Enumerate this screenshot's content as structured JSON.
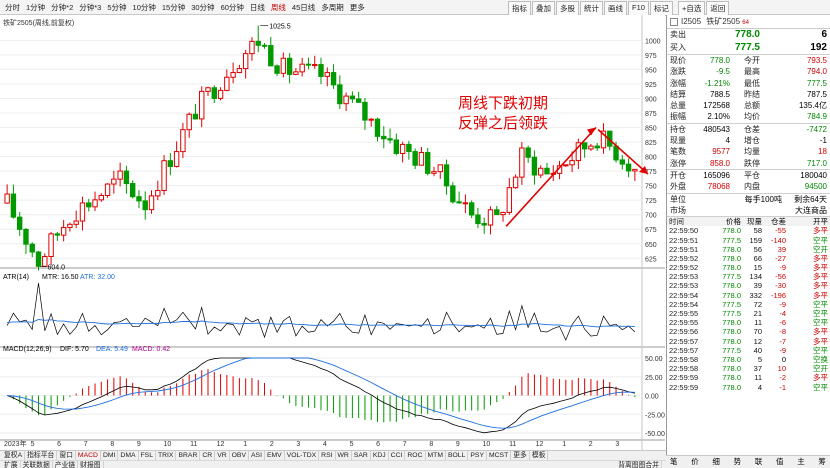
{
  "toolbar": {
    "periods": [
      "分时",
      "1分钟",
      "分钟*2",
      "分钟*3",
      "5分钟",
      "10分钟",
      "15分钟",
      "30分钟",
      "60分钟",
      "日线",
      "周线",
      "45日线",
      "多周期",
      "更多"
    ],
    "active_period": 10,
    "tools": [
      "指标",
      "叠加",
      "多股",
      "統计",
      "画线",
      "F10",
      "标记"
    ],
    "tools_right": [
      "+自选",
      "返回"
    ]
  },
  "chart": {
    "title": "铁矿2505(周线,前复权)",
    "high_label": "1025.5",
    "low_label": "604.0",
    "annotation_line1": "周线下跌初期",
    "annotation_line2": "反弹之后领跌",
    "price_axis": [
      "1000",
      "975",
      "950",
      "925",
      "900",
      "875",
      "850",
      "825",
      "800",
      "775",
      "750",
      "725",
      "700",
      "675",
      "650",
      "625"
    ],
    "atr_legend": {
      "name": "ATR(14)",
      "mtr": "MTR: 16.50",
      "atr": "ATR: 32.00"
    },
    "macd_legend": {
      "name": "MACD(12,26,9)",
      "dif": "DIF: 5.70",
      "dea": "DEA: 5.49",
      "macd": "MACD: 0.42"
    },
    "macd_axis": [
      "50.00",
      "25.00",
      "0.00",
      "-25.00",
      "-50.00"
    ],
    "x_labels": [
      "2023年",
      "5",
      "6",
      "7",
      "8",
      "9",
      "10",
      "11",
      "12",
      "1",
      "2",
      "3",
      "4",
      "5",
      "6",
      "7",
      "8",
      "9",
      "10",
      "11",
      "12",
      "1",
      "2",
      "3"
    ],
    "colors": {
      "up": "#e00000",
      "down": "#009a00",
      "dif": "#000000",
      "dea": "#1e6fe0",
      "atr": "#1e6fe0",
      "annotation": "#e00000"
    }
  },
  "chart_data": {
    "type": "candlestick",
    "series": [
      {
        "name": "ATR",
        "values": []
      },
      {
        "name": "MACD",
        "values": []
      }
    ],
    "price_high": 1025.5,
    "price_low": 604.0,
    "ylim": [
      610,
      1035
    ]
  },
  "panel": {
    "code": "I2505",
    "name": "铁矿2505",
    "badge": "64",
    "sell": {
      "label": "卖出",
      "price": "778.0",
      "vol": "6"
    },
    "buy": {
      "label": "买入",
      "price": "777.5",
      "vol": "192"
    },
    "quote": [
      [
        "现价",
        "778.0",
        "今开",
        "793.5"
      ],
      [
        "涨跌",
        "-9.5",
        "最高",
        "794.0"
      ],
      [
        "涨幅",
        "-1.21%",
        "最低",
        "777.5"
      ],
      [
        "结算",
        "788.5",
        "昨结",
        "787.5"
      ],
      [
        "总量",
        "172568",
        "总额",
        "135.4亿"
      ],
      [
        "振幅",
        "2.10%",
        "均价",
        "784.9"
      ]
    ],
    "pos": [
      [
        "持仓",
        "480543",
        "仓差",
        "-7472"
      ],
      [
        "现量",
        "4",
        "增仓",
        "-1"
      ],
      [
        "笔数",
        "9577",
        "均量",
        "18"
      ],
      [
        "涨停",
        "858.0",
        "跌停",
        "717.0"
      ]
    ],
    "io": [
      [
        "开仓",
        "165096",
        "平仓",
        "180040"
      ],
      [
        "外盘",
        "78068",
        "内盘",
        "94500"
      ]
    ],
    "unit": [
      "单位",
      "每手100吨",
      "剩余64天"
    ],
    "market": [
      "市场",
      "",
      "大连商品"
    ],
    "tick_header": [
      "时间",
      "价格",
      "现量",
      "仓差",
      "开平"
    ],
    "ticks": [
      [
        "22:59:50",
        "778.0",
        "58",
        "-55",
        "多平"
      ],
      [
        "22:59:51",
        "777.5",
        "159",
        "-140",
        "空平"
      ],
      [
        "22:59:51",
        "778.0",
        "56",
        "39",
        "空开"
      ],
      [
        "22:59:52",
        "778.0",
        "66",
        "-27",
        "多平"
      ],
      [
        "22:59:52",
        "778.0",
        "15",
        "-9",
        "多平"
      ],
      [
        "22:59:53",
        "777.5",
        "134",
        "-56",
        "多平"
      ],
      [
        "22:59:53",
        "778.0",
        "39",
        "-30",
        "多平"
      ],
      [
        "22:59:54",
        "778.0",
        "332",
        "-196",
        "多平"
      ],
      [
        "22:59:54",
        "777.5",
        "72",
        "-9",
        "空平"
      ],
      [
        "22:59:55",
        "777.5",
        "21",
        "-4",
        "空平"
      ],
      [
        "22:59:55",
        "778.0",
        "11",
        "-6",
        "空平"
      ],
      [
        "22:59:56",
        "778.0",
        "70",
        "-8",
        "多平"
      ],
      [
        "22:59:57",
        "778.0",
        "12",
        "-7",
        "多平"
      ],
      [
        "22:59:57",
        "777.5",
        "40",
        "-9",
        "空平"
      ],
      [
        "22:59:58",
        "778.0",
        "5",
        "0",
        "空换"
      ],
      [
        "22:59:58",
        "778.0",
        "37",
        "10",
        "空开"
      ],
      [
        "22:59:59",
        "778.0",
        "11",
        "-2",
        "多平"
      ],
      [
        "22:59:59",
        "778.0",
        "4",
        "-1",
        "空平"
      ]
    ],
    "foot": [
      "笔",
      "价",
      "细",
      "势",
      "联",
      "值",
      "主",
      "筹"
    ]
  },
  "bottom": {
    "tabs1": [
      "复权A",
      "指标平台",
      "窗口",
      "MACD",
      "DMI",
      "DMA",
      "FSL",
      "TRIX",
      "BRAR",
      "CR",
      "VR",
      "OBV",
      "ASI",
      "EMV",
      "VOL-TDX",
      "RSI",
      "WR",
      "SAR",
      "KDJ",
      "CCI",
      "ROC",
      "MTM",
      "BOLL",
      "PSY",
      "MCST",
      "更多",
      "模板"
    ],
    "tabs2": [
      "扩展",
      "关联数据",
      "产业链",
      "财报图"
    ],
    "status": "背离图图合并",
    "right_tab": "周期"
  }
}
